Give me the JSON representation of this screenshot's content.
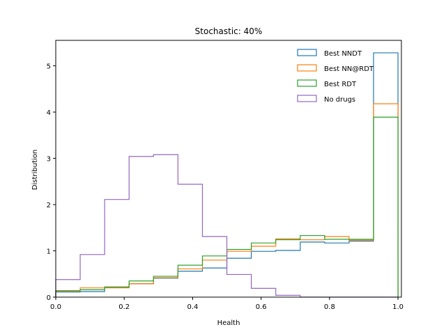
{
  "chart_data": {
    "type": "histogram",
    "title": "Stochastic: 40%",
    "xlabel": "Health",
    "ylabel": "Distribution",
    "xlim": [
      0.0,
      1.01
    ],
    "ylim": [
      0,
      5.55
    ],
    "xticks": [
      "0.0",
      "0.2",
      "0.4",
      "0.6",
      "0.8",
      "1.0"
    ],
    "yticks": [
      "0",
      "1",
      "2",
      "3",
      "4",
      "5"
    ],
    "bin_edges": [
      0.0,
      0.0714,
      0.1429,
      0.2143,
      0.2857,
      0.3571,
      0.4286,
      0.5,
      0.5714,
      0.6429,
      0.7143,
      0.7857,
      0.8571,
      0.9286,
      1.0
    ],
    "legend_position": "top-right",
    "series": [
      {
        "name": "Best NNDT",
        "color": "#1f77b4",
        "values": [
          0.11,
          0.12,
          0.21,
          0.29,
          0.41,
          0.56,
          0.63,
          0.84,
          0.99,
          1.01,
          1.19,
          1.17,
          1.21,
          5.28
        ]
      },
      {
        "name": "Best NN@RDT",
        "color": "#ff7f0e",
        "values": [
          0.13,
          0.2,
          0.2,
          0.29,
          0.42,
          0.61,
          0.8,
          0.99,
          1.1,
          1.26,
          1.24,
          1.31,
          1.23,
          4.18
        ]
      },
      {
        "name": "Best RDT",
        "color": "#2ca02c",
        "values": [
          0.14,
          0.16,
          0.22,
          0.35,
          0.45,
          0.69,
          0.89,
          1.03,
          1.17,
          1.24,
          1.33,
          1.25,
          1.25,
          3.89
        ]
      },
      {
        "name": "No drugs",
        "color": "#9467bd",
        "values": [
          0.38,
          0.92,
          2.11,
          3.04,
          3.08,
          2.44,
          1.31,
          0.49,
          0.19,
          0.04,
          0.0,
          0.0,
          0.0,
          0.0
        ]
      }
    ]
  }
}
